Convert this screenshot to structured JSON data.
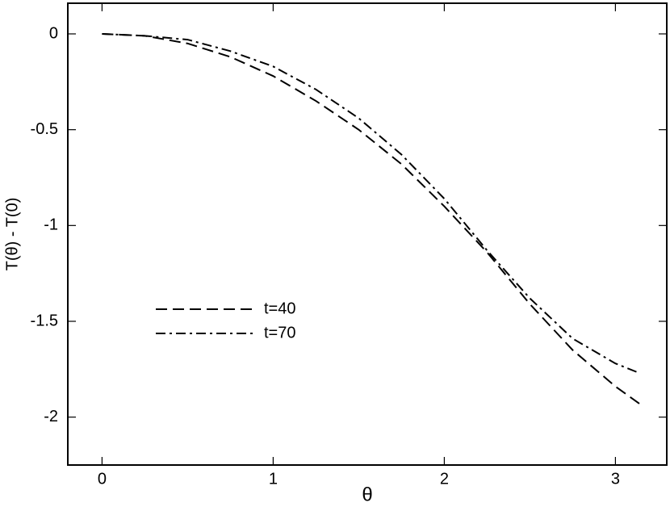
{
  "chart_data": {
    "type": "line",
    "xlabel": "θ",
    "ylabel": "T(θ) - T(0)",
    "xlim": [
      -0.2,
      3.3
    ],
    "ylim": [
      -2.25,
      0.16
    ],
    "xticks": [
      0,
      1,
      2,
      3
    ],
    "yticks": [
      0,
      -0.5,
      -1,
      -1.5,
      -2
    ],
    "legend": "lower left",
    "series": [
      {
        "name": "t=40",
        "color": "#000000",
        "linestyle": "dashed",
        "x": [
          0,
          0.25,
          0.5,
          0.75,
          1.0,
          1.25,
          1.5,
          1.75,
          2.0,
          2.25,
          2.5,
          2.75,
          3.0,
          3.14
        ],
        "values": [
          0,
          -0.01,
          -0.05,
          -0.12,
          -0.22,
          -0.35,
          -0.5,
          -0.68,
          -0.9,
          -1.14,
          -1.41,
          -1.65,
          -1.84,
          -1.93
        ]
      },
      {
        "name": "t=70",
        "color": "#000000",
        "linestyle": "dashdot",
        "x": [
          0,
          0.25,
          0.5,
          0.75,
          1.0,
          1.25,
          1.5,
          1.75,
          2.0,
          2.25,
          2.5,
          2.75,
          3.0,
          3.14
        ],
        "values": [
          0,
          -0.01,
          -0.03,
          -0.09,
          -0.17,
          -0.29,
          -0.44,
          -0.63,
          -0.86,
          -1.13,
          -1.38,
          -1.59,
          -1.72,
          -1.77
        ]
      }
    ]
  }
}
